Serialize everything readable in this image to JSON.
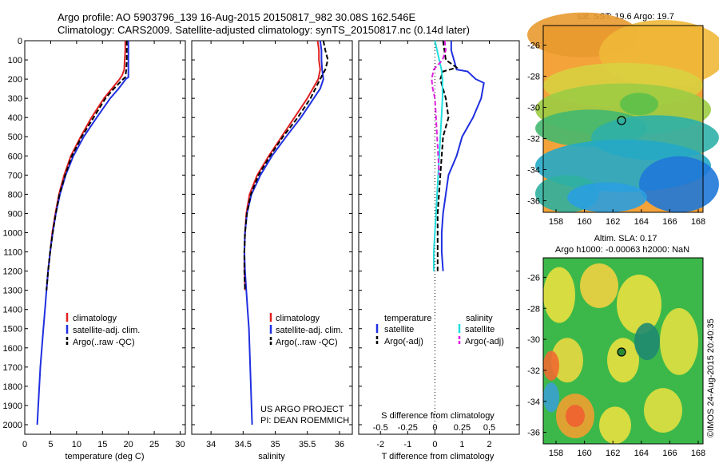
{
  "header": {
    "line1": "Argo profile: AO 5903796_139 16-Aug-2015 20150817_982 30.08S 162.546E",
    "line2": "Climatology: CARS2009. Satellite-adjusted climatology: synTS_20150817.nc (0.14d later)"
  },
  "colors": {
    "climatology": "#e02020",
    "satellite": "#1f2fe0",
    "argo": "#000000",
    "salinity_satellite": "#22dede",
    "salinity_argo": "#e020e0"
  },
  "chart_data": [
    {
      "type": "line",
      "name": "temperature-profile",
      "xlabel": "temperature (deg C)",
      "ylabel": "",
      "xlim": [
        0,
        31
      ],
      "ylim": [
        2050,
        0
      ],
      "xticks": [
        0,
        5,
        10,
        15,
        20,
        25,
        30
      ],
      "yticks": [
        0,
        100,
        200,
        300,
        400,
        500,
        600,
        700,
        800,
        900,
        1000,
        1100,
        1200,
        1300,
        1400,
        1500,
        1600,
        1700,
        1800,
        1900,
        2000
      ],
      "legend": [
        "climatology",
        "satellite-adj. clim.",
        "Argo(..raw -QC)"
      ],
      "series": [
        {
          "name": "climatology",
          "style": "solid",
          "color": "#e02020",
          "depth": [
            0,
            50,
            100,
            150,
            180,
            200,
            250,
            300,
            400,
            500,
            600,
            700,
            800,
            900,
            1000,
            1100,
            1200,
            1300
          ],
          "values": [
            19.4,
            19.4,
            19.3,
            19.2,
            18.8,
            18.3,
            16.8,
            15.3,
            12.9,
            10.8,
            8.9,
            7.6,
            6.6,
            5.9,
            5.3,
            4.9,
            4.5,
            4.2
          ]
        },
        {
          "name": "satellite-adj. clim.",
          "style": "solid",
          "color": "#1f2fe0",
          "depth": [
            0,
            50,
            100,
            150,
            190,
            200,
            250,
            300,
            400,
            500,
            600,
            700,
            800,
            900,
            1000,
            1100,
            1200,
            1300,
            1400,
            1500,
            1600,
            1700,
            1800,
            1900,
            2000
          ],
          "values": [
            20.0,
            20.0,
            20.0,
            20.0,
            20.0,
            19.5,
            18.1,
            16.5,
            13.9,
            11.4,
            9.4,
            7.9,
            6.8,
            6.0,
            5.4,
            4.9,
            4.5,
            4.2,
            3.9,
            3.6,
            3.3,
            3.0,
            2.8,
            2.6,
            2.4
          ]
        },
        {
          "name": "Argo(..raw -QC)",
          "style": "dashed",
          "color": "#000000",
          "depth": [
            0,
            50,
            100,
            150,
            190,
            200,
            250,
            300,
            400,
            500,
            600,
            700,
            800,
            900,
            1000,
            1100,
            1200,
            1300
          ],
          "values": [
            19.7,
            19.7,
            19.7,
            19.6,
            19.4,
            19.0,
            17.2,
            15.6,
            13.3,
            11.0,
            9.1,
            7.8,
            6.7,
            6.0,
            5.4,
            4.9,
            4.5,
            4.2
          ]
        }
      ]
    },
    {
      "type": "line",
      "name": "salinity-profile",
      "xlabel": "salinity",
      "xlim": [
        33.7,
        36.2
      ],
      "ylim": [
        2050,
        0
      ],
      "xticks": [
        34,
        34.5,
        35,
        35.5,
        36
      ],
      "legend": [
        "climatology",
        "satellite-adj. clim.",
        "Argo(..raw -QC)"
      ],
      "series": [
        {
          "name": "climatology",
          "style": "solid",
          "color": "#e02020",
          "depth": [
            0,
            50,
            100,
            150,
            200,
            300,
            400,
            500,
            600,
            700,
            800,
            900,
            1000,
            1100,
            1200,
            1300
          ],
          "values": [
            35.66,
            35.68,
            35.68,
            35.7,
            35.67,
            35.5,
            35.3,
            35.1,
            34.9,
            34.72,
            34.6,
            34.55,
            34.53,
            34.52,
            34.52,
            34.53
          ]
        },
        {
          "name": "satellite-adj. clim.",
          "style": "solid",
          "color": "#1f2fe0",
          "depth": [
            0,
            50,
            100,
            150,
            200,
            250,
            300,
            400,
            500,
            600,
            700,
            800,
            900,
            1000,
            1100,
            1200,
            1300,
            1400,
            1500,
            1600,
            1700,
            1800,
            1900,
            2000
          ],
          "values": [
            35.7,
            35.72,
            35.72,
            35.73,
            35.75,
            35.7,
            35.6,
            35.4,
            35.17,
            34.95,
            34.77,
            34.63,
            34.56,
            34.53,
            34.52,
            34.53,
            34.55,
            34.57,
            34.59,
            34.6,
            34.61,
            34.62,
            34.63,
            34.64
          ]
        },
        {
          "name": "Argo(..raw -QC)",
          "style": "dashed",
          "color": "#000000",
          "depth": [
            0,
            50,
            100,
            150,
            200,
            300,
            400,
            500,
            600,
            700,
            800,
            900,
            1000,
            1100,
            1200,
            1300
          ],
          "values": [
            35.75,
            35.78,
            35.82,
            35.78,
            35.7,
            35.55,
            35.35,
            35.12,
            34.92,
            34.74,
            34.62,
            34.56,
            34.53,
            34.52,
            34.52,
            34.53
          ]
        }
      ]
    },
    {
      "type": "line",
      "name": "difference-profile",
      "title_top": "S difference from climatology",
      "xticks_top": [
        "-0.5",
        "-0.25",
        "0",
        "0.25",
        "0.5"
      ],
      "xlabel": "T difference from climatology",
      "xticks": [
        -2,
        -1,
        0,
        1,
        2
      ],
      "xlim": [
        -2.8,
        3.1
      ],
      "ylim": [
        2050,
        0
      ],
      "legend": {
        "temperature_header": "temperature",
        "salinity_header": "salinity",
        "items": [
          "satellite",
          "Argo(-adj)",
          "satellite",
          "Argo(-adj)"
        ]
      },
      "series": [
        {
          "name": "temperature satellite",
          "color": "#1f2fe0",
          "style": "solid",
          "depth": [
            0,
            50,
            100,
            150,
            160,
            200,
            220,
            300,
            400,
            500,
            600,
            700,
            800,
            900,
            1000,
            1100,
            1200
          ],
          "values": [
            0.6,
            0.6,
            0.7,
            0.8,
            1.2,
            1.5,
            1.8,
            1.7,
            1.4,
            1.0,
            0.8,
            0.5,
            0.4,
            0.3,
            0.25,
            0.25,
            0.3
          ]
        },
        {
          "name": "temperature Argo(-adj)",
          "color": "#000000",
          "style": "dashed",
          "depth": [
            0,
            50,
            100,
            140,
            160,
            200,
            300,
            400,
            500,
            600,
            700,
            800,
            900,
            1000,
            1100,
            1200
          ],
          "values": [
            0.3,
            0.35,
            0.4,
            0.8,
            0.3,
            0.2,
            0.4,
            0.5,
            0.3,
            0.25,
            0.2,
            0.15,
            0.1,
            0.1,
            0.1,
            0.1
          ]
        },
        {
          "name": "salinity satellite",
          "color": "#22dede",
          "style": "solid",
          "depth": [
            0,
            50,
            100,
            150,
            200,
            300,
            400,
            500,
            600,
            700,
            800,
            900,
            1000,
            1100,
            1200
          ],
          "values": [
            0,
            0.02,
            0.04,
            0.06,
            0.07,
            0.07,
            0.06,
            0.05,
            0.04,
            0.03,
            0.02,
            0.01,
            0,
            -0.01,
            -0.01
          ]
        },
        {
          "name": "salinity Argo(-adj)",
          "color": "#e020e0",
          "style": "dashed",
          "depth": [
            0,
            50,
            100,
            150,
            200,
            250,
            300,
            400,
            500,
            600,
            700
          ],
          "values": [
            0.09,
            0.1,
            0.07,
            -0.01,
            -0.03,
            -0.02,
            0,
            0.01,
            0.02,
            0.03,
            0.04
          ]
        }
      ]
    }
  ],
  "footer": {
    "project": "US ARGO PROJECT",
    "pi": "PI: DEAN ROEMMICH",
    "stamp": "©IMOS 24-Aug-2015 20:40:35"
  },
  "maps": {
    "sst": {
      "title": "sat. SST: 19.6 Argo: 19.7",
      "yticks": [
        "-26",
        "-28",
        "-30",
        "-32",
        "-34",
        "-36"
      ],
      "xticks": [
        "158",
        "160",
        "162",
        "164",
        "166",
        "168"
      ]
    },
    "sla": {
      "title1": "Altim. SLA: 0.17",
      "title2": "Argo h1000: -0.00063 h2000: NaN",
      "yticks": [
        "-26",
        "-28",
        "-30",
        "-32",
        "-34",
        "-36"
      ],
      "xticks": [
        "158",
        "160",
        "162",
        "164",
        "166",
        "168"
      ]
    }
  }
}
